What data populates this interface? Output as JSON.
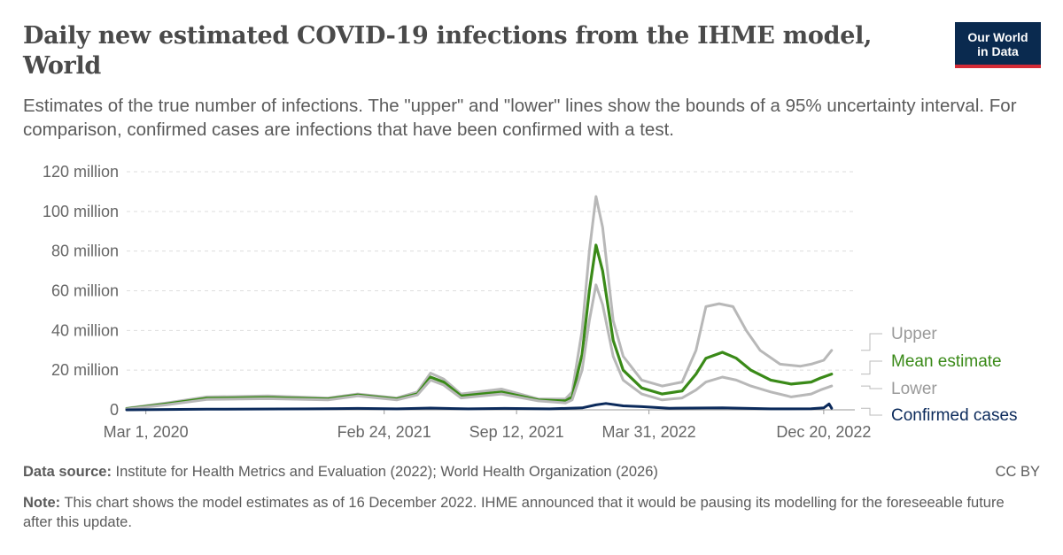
{
  "header": {
    "title": "Daily new estimated COVID-19 infections from the IHME model, World",
    "subtitle": "Estimates of the true number of infections. The \"upper\" and \"lower\" lines show the bounds of a 95% uncertainty interval. For comparison, confirmed cases are infections that have been confirmed with a test.",
    "logo_line1": "Our World",
    "logo_line2": "in Data"
  },
  "footer": {
    "source_label": "Data source:",
    "source_text": "Institute for Health Metrics and Evaluation (2022); World Health Organization (2026)",
    "license": "CC BY",
    "note_label": "Note:",
    "note_text": "This chart shows the model estimates as of 16 December 2022. IHME announced that it would be pausing its modelling for the foreseeable future after this update."
  },
  "colors": {
    "upper": "#b8b8b8",
    "mean": "#3a8a18",
    "lower": "#b8b8b8",
    "confirmed": "#0b2a5b",
    "grid": "#dddddd",
    "axis_text": "#666666"
  },
  "chart_data": {
    "type": "line",
    "title": "Daily new estimated COVID-19 infections from the IHME model, World",
    "ylim": [
      0,
      120000000
    ],
    "y_ticks": [
      0,
      20000000,
      40000000,
      60000000,
      80000000,
      100000000,
      120000000
    ],
    "y_tick_labels": [
      "0",
      "20 million",
      "40 million",
      "60 million",
      "80 million",
      "100 million",
      "120 million"
    ],
    "xlim": [
      "2020-02-01",
      "2023-02-05"
    ],
    "x_ticks": [
      "2020-03-01",
      "2021-02-24",
      "2021-09-12",
      "2022-03-31",
      "2022-12-20"
    ],
    "x_tick_labels": [
      "Mar 1, 2020",
      "Feb 24, 2021",
      "Sep 12, 2021",
      "Mar 31, 2022",
      "Dec 20, 2022"
    ],
    "grid": true,
    "legend": "right",
    "series": [
      {
        "name": "Upper",
        "key": "upper",
        "points": [
          [
            "2020-02-01",
            0.8
          ],
          [
            "2020-04-01",
            3.5
          ],
          [
            "2020-06-01",
            6.5
          ],
          [
            "2020-09-01",
            7.0
          ],
          [
            "2020-12-01",
            6.0
          ],
          [
            "2021-01-15",
            8.0
          ],
          [
            "2021-03-15",
            6.0
          ],
          [
            "2021-04-15",
            9.0
          ],
          [
            "2021-05-05",
            18.5
          ],
          [
            "2021-05-25",
            15.5
          ],
          [
            "2021-06-20",
            8.0
          ],
          [
            "2021-08-20",
            10.5
          ],
          [
            "2021-10-15",
            5.5
          ],
          [
            "2021-11-25",
            5.5
          ],
          [
            "2021-12-05",
            9.0
          ],
          [
            "2021-12-20",
            40.0
          ],
          [
            "2021-12-31",
            80.0
          ],
          [
            "2022-01-10",
            107.5
          ],
          [
            "2022-01-20",
            92.0
          ],
          [
            "2022-02-05",
            45.0
          ],
          [
            "2022-02-20",
            27.0
          ],
          [
            "2022-03-20",
            15.0
          ],
          [
            "2022-04-20",
            12.0
          ],
          [
            "2022-05-20",
            14.0
          ],
          [
            "2022-06-10",
            30.0
          ],
          [
            "2022-06-25",
            52.0
          ],
          [
            "2022-07-15",
            53.5
          ],
          [
            "2022-08-05",
            52.0
          ],
          [
            "2022-08-25",
            40.0
          ],
          [
            "2022-09-15",
            30.0
          ],
          [
            "2022-10-15",
            23.0
          ],
          [
            "2022-11-15",
            22.0
          ],
          [
            "2022-12-01",
            23.0
          ],
          [
            "2022-12-20",
            25.0
          ],
          [
            "2023-01-01",
            30.0
          ]
        ]
      },
      {
        "name": "Mean estimate",
        "key": "mean",
        "points": [
          [
            "2020-02-01",
            0.6
          ],
          [
            "2020-04-01",
            3.0
          ],
          [
            "2020-06-01",
            5.8
          ],
          [
            "2020-09-01",
            6.2
          ],
          [
            "2020-12-01",
            5.5
          ],
          [
            "2021-01-15",
            7.5
          ],
          [
            "2021-03-15",
            5.5
          ],
          [
            "2021-04-15",
            8.0
          ],
          [
            "2021-05-05",
            16.5
          ],
          [
            "2021-05-25",
            14.0
          ],
          [
            "2021-06-20",
            7.0
          ],
          [
            "2021-08-20",
            9.0
          ],
          [
            "2021-10-15",
            5.0
          ],
          [
            "2021-11-25",
            4.5
          ],
          [
            "2021-12-05",
            6.5
          ],
          [
            "2021-12-20",
            28.0
          ],
          [
            "2021-12-31",
            60.0
          ],
          [
            "2022-01-10",
            83.0
          ],
          [
            "2022-01-20",
            70.0
          ],
          [
            "2022-02-05",
            35.0
          ],
          [
            "2022-02-20",
            20.0
          ],
          [
            "2022-03-20",
            11.0
          ],
          [
            "2022-04-20",
            8.0
          ],
          [
            "2022-05-20",
            9.5
          ],
          [
            "2022-06-10",
            18.0
          ],
          [
            "2022-06-25",
            26.0
          ],
          [
            "2022-07-20",
            29.0
          ],
          [
            "2022-08-10",
            26.0
          ],
          [
            "2022-09-01",
            20.0
          ],
          [
            "2022-10-01",
            15.0
          ],
          [
            "2022-11-01",
            13.0
          ],
          [
            "2022-12-01",
            14.0
          ],
          [
            "2022-12-15",
            16.0
          ],
          [
            "2023-01-01",
            18.0
          ]
        ]
      },
      {
        "name": "Lower",
        "key": "lower",
        "points": [
          [
            "2020-02-01",
            0.4
          ],
          [
            "2020-04-01",
            2.5
          ],
          [
            "2020-06-01",
            5.2
          ],
          [
            "2020-09-01",
            5.6
          ],
          [
            "2020-12-01",
            5.0
          ],
          [
            "2021-01-15",
            7.0
          ],
          [
            "2021-03-15",
            5.0
          ],
          [
            "2021-04-15",
            7.5
          ],
          [
            "2021-05-05",
            15.0
          ],
          [
            "2021-05-25",
            12.5
          ],
          [
            "2021-06-20",
            6.0
          ],
          [
            "2021-08-20",
            8.0
          ],
          [
            "2021-10-15",
            4.5
          ],
          [
            "2021-11-25",
            3.5
          ],
          [
            "2021-12-05",
            5.0
          ],
          [
            "2021-12-20",
            20.0
          ],
          [
            "2021-12-31",
            45.0
          ],
          [
            "2022-01-10",
            63.0
          ],
          [
            "2022-01-20",
            53.0
          ],
          [
            "2022-02-05",
            27.0
          ],
          [
            "2022-02-20",
            15.0
          ],
          [
            "2022-03-20",
            8.0
          ],
          [
            "2022-04-20",
            5.0
          ],
          [
            "2022-05-20",
            6.0
          ],
          [
            "2022-06-10",
            10.0
          ],
          [
            "2022-06-25",
            14.0
          ],
          [
            "2022-07-20",
            16.5
          ],
          [
            "2022-08-10",
            15.0
          ],
          [
            "2022-09-01",
            12.0
          ],
          [
            "2022-10-01",
            9.0
          ],
          [
            "2022-11-01",
            6.5
          ],
          [
            "2022-12-01",
            8.0
          ],
          [
            "2022-12-15",
            10.0
          ],
          [
            "2023-01-01",
            12.0
          ]
        ]
      },
      {
        "name": "Confirmed cases",
        "key": "confirmed",
        "points": [
          [
            "2020-02-01",
            0.0
          ],
          [
            "2020-06-01",
            0.3
          ],
          [
            "2020-11-01",
            0.5
          ],
          [
            "2021-01-15",
            0.7
          ],
          [
            "2021-03-15",
            0.5
          ],
          [
            "2021-05-05",
            0.9
          ],
          [
            "2021-07-01",
            0.5
          ],
          [
            "2021-08-25",
            0.7
          ],
          [
            "2021-11-01",
            0.5
          ],
          [
            "2021-12-20",
            1.0
          ],
          [
            "2022-01-10",
            2.5
          ],
          [
            "2022-01-25",
            3.2
          ],
          [
            "2022-02-20",
            2.0
          ],
          [
            "2022-03-20",
            1.6
          ],
          [
            "2022-05-01",
            0.8
          ],
          [
            "2022-07-20",
            1.0
          ],
          [
            "2022-10-01",
            0.5
          ],
          [
            "2022-12-01",
            0.6
          ],
          [
            "2022-12-20",
            1.0
          ],
          [
            "2022-12-28",
            3.0
          ],
          [
            "2023-01-01",
            0.8
          ]
        ]
      }
    ]
  }
}
